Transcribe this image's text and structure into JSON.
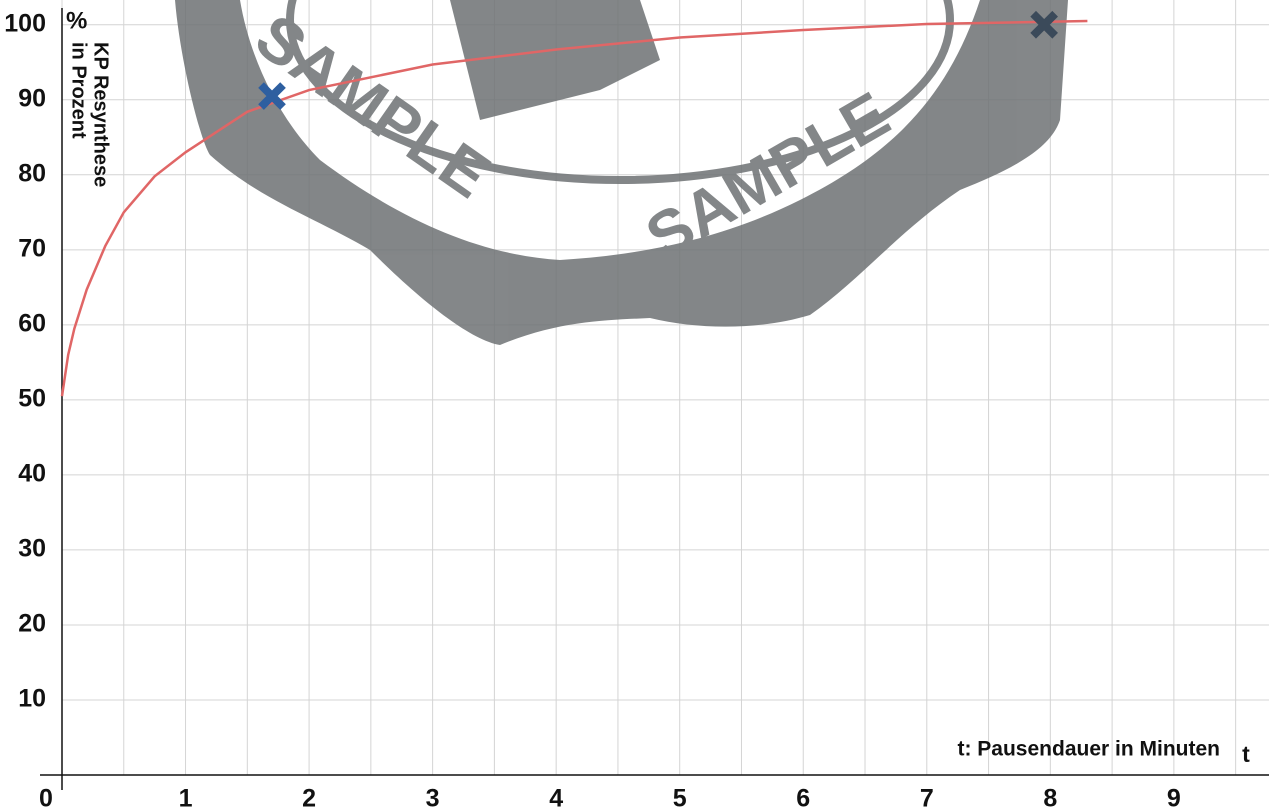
{
  "watermark": "SAMPLE",
  "chart_data": {
    "type": "line",
    "y_unit": "%",
    "y_label": [
      "KP Resynthese",
      "in Prozent"
    ],
    "x_label": "t: Pausendauer in Minuten",
    "x_symbol": "t",
    "xlim": [
      0,
      9.77
    ],
    "ylim": [
      0,
      103.3
    ],
    "xticks": [
      0,
      1,
      2,
      3,
      4,
      5,
      6,
      7,
      8,
      9
    ],
    "yticks": [
      10,
      20,
      30,
      40,
      50,
      60,
      70,
      80,
      90,
      100
    ],
    "grid": true,
    "series": [
      {
        "color": "#e06666",
        "x": [
          0,
          0.05,
          0.1,
          0.2,
          0.35,
          0.5,
          0.75,
          1,
          1.5,
          2,
          3,
          4,
          5,
          6,
          7,
          8.3
        ],
        "values": [
          50.5,
          56,
          59.5,
          64.7,
          70.5,
          75,
          79.8,
          83,
          88.4,
          91.3,
          94.7,
          96.7,
          98.3,
          99.3,
          100.1,
          100.5
        ]
      }
    ],
    "points": {
      "x": [
        1.7,
        7.95
      ],
      "values": [
        90.5,
        100
      ],
      "colors": [
        "#2e5fa0",
        "#3b4a5a"
      ]
    }
  }
}
